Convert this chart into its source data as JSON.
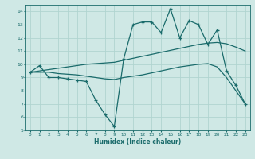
{
  "xlabel": "Humidex (Indice chaleur)",
  "bg_color": "#cfe8e5",
  "grid_color": "#b0d4d0",
  "line_color": "#1a6b6b",
  "xlim": [
    -0.5,
    23.5
  ],
  "ylim": [
    5,
    14.5
  ],
  "line1_x": [
    0,
    1,
    2,
    3,
    4,
    5,
    6,
    7,
    8,
    9,
    10,
    11,
    12,
    13,
    14,
    15,
    16,
    17,
    18,
    19,
    20,
    21,
    22,
    23
  ],
  "line1_y": [
    9.4,
    9.9,
    9.0,
    9.0,
    8.9,
    8.8,
    8.7,
    7.3,
    6.2,
    5.3,
    10.4,
    13.0,
    13.2,
    13.2,
    12.4,
    14.2,
    12.0,
    13.3,
    13.0,
    11.5,
    12.6,
    9.5,
    8.4,
    7.0
  ],
  "line2_x": [
    0,
    1,
    2,
    3,
    4,
    5,
    6,
    7,
    8,
    9,
    10,
    11,
    12,
    13,
    14,
    15,
    16,
    17,
    18,
    19,
    20,
    21,
    22,
    23
  ],
  "line2_y": [
    9.4,
    9.5,
    9.6,
    9.7,
    9.8,
    9.9,
    10.0,
    10.05,
    10.1,
    10.15,
    10.3,
    10.45,
    10.6,
    10.75,
    10.9,
    11.05,
    11.2,
    11.35,
    11.5,
    11.6,
    11.65,
    11.55,
    11.3,
    11.0
  ],
  "line3_x": [
    0,
    1,
    2,
    3,
    4,
    5,
    6,
    7,
    8,
    9,
    10,
    11,
    12,
    13,
    14,
    15,
    16,
    17,
    18,
    19,
    20,
    21,
    22,
    23
  ],
  "line3_y": [
    9.4,
    9.4,
    9.4,
    9.3,
    9.25,
    9.2,
    9.1,
    9.0,
    8.9,
    8.85,
    9.0,
    9.1,
    9.2,
    9.35,
    9.5,
    9.65,
    9.8,
    9.9,
    10.0,
    10.05,
    9.8,
    9.0,
    8.0,
    7.0
  ],
  "xticks": [
    0,
    1,
    2,
    3,
    4,
    5,
    6,
    7,
    8,
    9,
    10,
    11,
    12,
    13,
    14,
    15,
    16,
    17,
    18,
    19,
    20,
    21,
    22,
    23
  ],
  "yticks": [
    5,
    6,
    7,
    8,
    9,
    10,
    11,
    12,
    13,
    14
  ],
  "marker_x": [
    0,
    1,
    2,
    3,
    4,
    9,
    10,
    11,
    12,
    13,
    14,
    15,
    16,
    17,
    18,
    19,
    20,
    21,
    22,
    23
  ]
}
